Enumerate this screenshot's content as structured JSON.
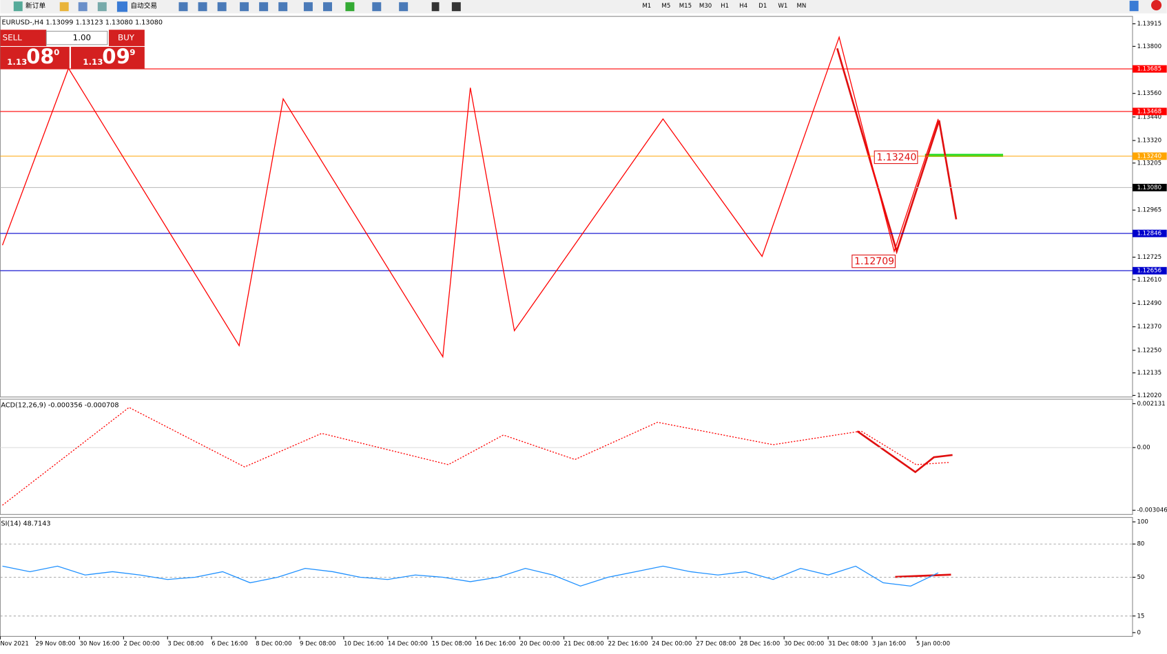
{
  "toolbar": {
    "new_order": "新订单",
    "auto_trading": "自动交易",
    "timeframes": [
      "M1",
      "M5",
      "M15",
      "M30",
      "H1",
      "H4",
      "D1",
      "W1",
      "MN"
    ]
  },
  "symbol_header": "EURUSD-,H4  1.13099 1.13123 1.13080 1.13080",
  "trade_panel": {
    "sell": "SELL",
    "buy": "BUY",
    "volume": "1.00",
    "bid": {
      "big_figure": "1.13",
      "pips": "08",
      "point": "0"
    },
    "ask": {
      "big_figure": "1.13",
      "pips": "09",
      "point": "9"
    }
  },
  "main_panel": {
    "ylim": [
      1.12012,
      1.13953
    ],
    "xlim": [
      -0.4,
      205.3
    ],
    "yticks": [
      1.13915,
      {
        "value": 1.138,
        "label": "1.13800"
      },
      {
        "value": 1.1356,
        "label": "1.13560"
      },
      {
        "value": 1.1344,
        "label": "1.13440"
      },
      {
        "value": 1.1332,
        "label": "1.13320"
      },
      1.13205,
      1.12965,
      1.12725,
      {
        "value": 1.1261,
        "label": "1.12610"
      },
      {
        "value": 1.1249,
        "label": "1.12490"
      },
      {
        "value": 1.1237,
        "label": "1.12370"
      },
      {
        "value": 1.1225,
        "label": "1.12250"
      },
      1.12135,
      {
        "value": 1.1202,
        "label": "1.12020"
      }
    ],
    "levels": [
      {
        "price": 1.13685,
        "label": "1.13685",
        "color": "#ff0000"
      },
      {
        "price": 1.13468,
        "label": "1.13468",
        "color": "#ff0000"
      },
      {
        "price": 1.1324,
        "label": "1.13240",
        "color": "#ffa500"
      },
      {
        "price": 1.1308,
        "label": "1.13080",
        "color": "#c0c0c0"
      },
      {
        "price": 1.12846,
        "label": "1.12846",
        "color": "#0000cc"
      },
      {
        "price": 1.12656,
        "label": "1.12656",
        "color": "#0000cc"
      }
    ],
    "zigzag": {
      "color": "#ff0000",
      "x": [
        0,
        12,
        43,
        51,
        80,
        85,
        93,
        120,
        138,
        152,
        162,
        170
      ],
      "values": [
        1.12786,
        1.13688,
        1.12274,
        1.13532,
        1.12217,
        1.13589,
        1.1235,
        1.1343,
        1.12729,
        1.13847,
        1.12755,
        1.1343
      ]
    },
    "annotations": [
      "1.13240",
      "1.12709"
    ]
  },
  "macd_panel": {
    "label": "ACD(12,26,9) -0.000356 -0.000708",
    "ylim": [
      -0.00325,
      0.00235
    ],
    "yticks": [
      {
        "value": 0.002131,
        "label": "0.002131"
      },
      {
        "value": 0,
        "label": "0.00"
      },
      {
        "value": -0.003046,
        "label": "-0.003046"
      }
    ],
    "signal": {
      "color": "#ff0000",
      "x": [
        0,
        23,
        44,
        58,
        81,
        91,
        104,
        119,
        140,
        156,
        166,
        172
      ],
      "values": [
        -0.0028,
        0.00195,
        -0.00094,
        0.00069,
        -0.00083,
        0.00061,
        -0.00058,
        0.00123,
        0.00014,
        0.0008,
        -0.00083,
        -0.00072
      ]
    }
  },
  "rsi_panel": {
    "label": "SI(14) 48.7143",
    "ylim": [
      -3.4,
      104
    ],
    "yticks": [
      100,
      80,
      50,
      15,
      0
    ],
    "line": {
      "color": "#1e90ff",
      "x": [
        0,
        5,
        10,
        15,
        20,
        25,
        30,
        35,
        40,
        45,
        50,
        55,
        60,
        65,
        70,
        75,
        80,
        85,
        90,
        95,
        100,
        105,
        110,
        115,
        120,
        125,
        130,
        135,
        140,
        145,
        150,
        155,
        160,
        165,
        170
      ],
      "values": [
        60,
        55,
        60,
        52,
        55,
        52,
        48,
        50,
        55,
        45,
        50,
        58,
        55,
        50,
        48,
        52,
        50,
        46,
        50,
        58,
        52,
        42,
        50,
        55,
        60,
        55,
        52,
        55,
        48,
        58,
        52,
        60,
        45,
        42,
        54
      ]
    }
  },
  "x_axis": {
    "xticks": [
      {
        "value": -0.4,
        "label": "Nov 2021"
      },
      {
        "value": 6,
        "label": "29 Nov 08:00"
      },
      {
        "value": 14,
        "label": "30 Nov 16:00"
      },
      {
        "value": 22,
        "label": "2 Dec 00:00"
      },
      {
        "value": 30,
        "label": "3 Dec 08:00"
      },
      {
        "value": 38,
        "label": "6 Dec 16:00"
      },
      {
        "value": 46,
        "label": "8 Dec 00:00"
      },
      {
        "value": 54,
        "label": "9 Dec 08:00"
      },
      {
        "value": 62,
        "label": "10 Dec 16:00"
      },
      {
        "value": 70,
        "label": "14 Dec 00:00"
      },
      {
        "value": 78,
        "label": "15 Dec 08:00"
      },
      {
        "value": 86,
        "label": "16 Dec 16:00"
      },
      {
        "value": 94,
        "label": "20 Dec 00:00"
      },
      {
        "value": 102,
        "label": "21 Dec 08:00"
      },
      {
        "value": 110,
        "label": "22 Dec 16:00"
      },
      {
        "value": 118,
        "label": "24 Dec 00:00"
      },
      {
        "value": 126,
        "label": "27 Dec 08:00"
      },
      {
        "value": 134,
        "label": "28 Dec 16:00"
      },
      {
        "value": 142,
        "label": "30 Dec 00:00"
      },
      {
        "value": 150,
        "label": "31 Dec 08:00"
      },
      {
        "value": 158,
        "label": "3 Jan 16:00"
      },
      {
        "value": 166,
        "label": "5 Jan 00:00"
      }
    ]
  }
}
